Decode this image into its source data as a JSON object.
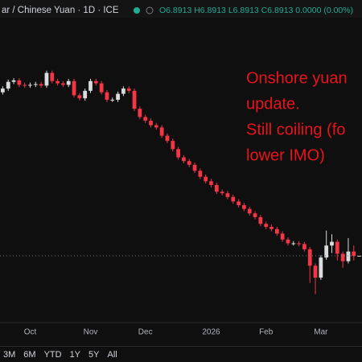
{
  "header": {
    "symbol": "ar / Chinese Yuan · 1D · ICE",
    "ohlc": "O6.8913 H6.8913 L6.8913 C6.8913 0.0000 (0.00%)"
  },
  "chart_data": {
    "type": "candlestick",
    "categories": [
      null,
      null,
      null,
      null,
      null,
      "Oct",
      null,
      null,
      null,
      null,
      null,
      null,
      null,
      null,
      null,
      null,
      "Nov",
      null,
      null,
      null,
      null,
      null,
      null,
      null,
      null,
      null,
      "Dec",
      null,
      null,
      null,
      null,
      null,
      null,
      null,
      null,
      null,
      null,
      null,
      "2026",
      null,
      null,
      null,
      null,
      null,
      null,
      null,
      null,
      null,
      "Feb",
      null,
      null,
      null,
      null,
      null,
      null,
      null,
      null,
      null,
      "Mar",
      null,
      null,
      null,
      null,
      null,
      null,
      null
    ],
    "open": [
      7.11,
      7.115,
      7.124,
      7.126,
      7.12,
      7.119,
      7.12,
      7.121,
      7.119,
      7.136,
      7.125,
      7.122,
      7.12,
      7.125,
      7.106,
      7.102,
      7.112,
      7.125,
      7.122,
      7.11,
      7.1,
      7.1,
      7.108,
      7.115,
      7.112,
      7.088,
      7.077,
      7.072,
      7.066,
      7.063,
      7.052,
      7.045,
      7.034,
      7.023,
      7.018,
      7.013,
      7.005,
      6.997,
      6.991,
      6.986,
      6.977,
      6.975,
      6.97,
      6.964,
      6.959,
      6.954,
      6.948,
      6.943,
      6.934,
      6.93,
      6.927,
      6.921,
      6.913,
      6.908,
      6.908,
      6.907,
      6.9,
      6.878,
      6.862,
      6.889,
      6.905,
      6.91,
      6.894,
      6.884,
      6.897,
      6.8913
    ],
    "high": [
      7.118,
      7.127,
      7.129,
      7.129,
      7.123,
      7.123,
      7.124,
      7.124,
      7.139,
      7.139,
      7.128,
      7.125,
      7.128,
      7.128,
      7.109,
      7.115,
      7.128,
      7.128,
      7.125,
      7.113,
      7.103,
      7.111,
      7.118,
      7.118,
      7.115,
      7.091,
      7.08,
      7.075,
      7.069,
      7.066,
      7.055,
      7.048,
      7.037,
      7.026,
      7.021,
      7.016,
      7.008,
      7.0,
      6.994,
      6.989,
      6.98,
      6.978,
      6.973,
      6.967,
      6.962,
      6.957,
      6.951,
      6.946,
      6.937,
      6.933,
      6.93,
      6.924,
      6.916,
      6.911,
      6.911,
      6.91,
      6.903,
      6.881,
      6.892,
      6.925,
      6.92,
      6.913,
      6.897,
      6.915,
      6.905,
      6.8913
    ],
    "low": [
      7.107,
      7.112,
      7.121,
      7.117,
      7.116,
      7.116,
      7.117,
      7.116,
      7.116,
      7.122,
      7.119,
      7.117,
      7.117,
      7.103,
      7.099,
      7.099,
      7.109,
      7.119,
      7.107,
      7.097,
      7.097,
      7.097,
      7.105,
      7.109,
      7.085,
      7.074,
      7.069,
      7.063,
      7.06,
      7.049,
      7.042,
      7.031,
      7.02,
      7.015,
      7.01,
      7.002,
      6.994,
      6.988,
      6.983,
      6.974,
      6.972,
      6.967,
      6.961,
      6.956,
      6.951,
      6.945,
      6.94,
      6.931,
      6.927,
      6.924,
      6.918,
      6.91,
      6.905,
      6.905,
      6.904,
      6.897,
      6.855,
      6.84,
      6.859,
      6.886,
      6.895,
      6.885,
      6.875,
      6.881,
      6.885,
      6.8913
    ],
    "close": [
      7.115,
      7.124,
      7.126,
      7.12,
      7.119,
      7.12,
      7.121,
      7.119,
      7.136,
      7.125,
      7.122,
      7.12,
      7.125,
      7.106,
      7.102,
      7.112,
      7.125,
      7.122,
      7.11,
      7.1,
      7.1,
      7.108,
      7.115,
      7.112,
      7.088,
      7.077,
      7.072,
      7.066,
      7.063,
      7.052,
      7.045,
      7.034,
      7.023,
      7.018,
      7.013,
      7.005,
      6.997,
      6.991,
      6.986,
      6.977,
      6.975,
      6.97,
      6.964,
      6.959,
      6.954,
      6.948,
      6.943,
      6.934,
      6.93,
      6.927,
      6.921,
      6.913,
      6.908,
      6.908,
      6.907,
      6.9,
      6.878,
      6.862,
      6.889,
      6.905,
      6.91,
      6.894,
      6.884,
      6.897,
      6.891,
      6.8913
    ],
    "up_color": "#d8dcdc",
    "down_color": "#f23645",
    "ylim": [
      6.803,
      7.2335
    ],
    "annotation": [
      "Onshore yuan",
      "update.",
      "Still coiling (fo",
      "lower IMO)"
    ],
    "annotation_color": "#e8141a"
  },
  "range_buttons": [
    "3M",
    "6M",
    "YTD",
    "1Y",
    "5Y",
    "All"
  ]
}
